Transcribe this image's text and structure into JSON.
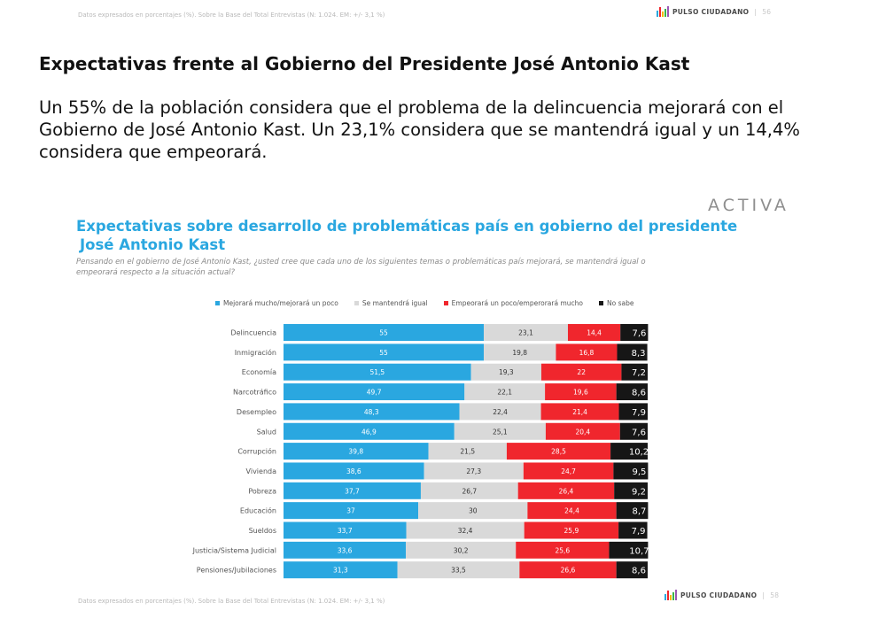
{
  "header": {
    "note": "Datos expresados en porcentajes (%). Sobre la Base del Total Entrevistas (N: 1.024. EM: +/- 3,1 %)",
    "brand": "PULSO CIUDADANO",
    "page": "56"
  },
  "title": "Expectativas frente al Gobierno del Presidente José Antonio Kast",
  "lead": "Un 55% de la población considera que el problema de la delincuencia mejorará con el Gobierno de José Antonio Kast. Un 23,1% considera que se mantendrá igual y un 14,4% considera que empeorará.",
  "activa_logo": "ACTIVA",
  "chart_header": {
    "title_plain": "Expectativas sobre ",
    "title_bold_1": "desarrollo de problemáticas país en gobierno del presidente",
    "title_bold_2": "José Antonio Kast",
    "subtitle": "Pensando en el gobierno de José Antonio Kast, ¿usted cree que cada uno de los siguientes temas o problemáticas país mejorará, se mantendrá igual o empeorará respecto a la situación actual?"
  },
  "footer": {
    "note": "Datos expresados en porcentajes (%). Sobre la Base del Total Entrevistas (N: 1.024. EM: +/- 3,1 %)",
    "brand": "PULSO CIUDADANO",
    "page": "58"
  },
  "colors": {
    "mejorara": "#2aa7e0",
    "igual": "#d9d9d9",
    "empeorara": "#f0262d",
    "no_sabe": "#161616",
    "title": "#2aa7e0"
  },
  "chart_data": {
    "type": "bar",
    "orientation": "horizontal",
    "stacked": true,
    "categories": [
      "Delincuencia",
      "Inmigración",
      "Economía",
      "Narcotráfico",
      "Desempleo",
      "Salud",
      "Corrupción",
      "Vivienda",
      "Pobreza",
      "Educación",
      "Sueldos",
      "Justicia/Sistema Judicial",
      "Pensiones/Jubilaciones"
    ],
    "series": [
      {
        "name": "Mejorará mucho/mejorará un poco",
        "labels": [
          "55",
          "55",
          "51,5",
          "49,7",
          "48,3",
          "46,9",
          "39,8",
          "38,6",
          "37,7",
          "37",
          "33,7",
          "33,6",
          "31,3"
        ],
        "values": [
          55,
          55,
          51.5,
          49.7,
          48.3,
          46.9,
          39.8,
          38.6,
          37.7,
          37,
          33.7,
          33.6,
          31.3
        ]
      },
      {
        "name": "Se mantendrá igual",
        "labels": [
          "23,1",
          "19,8",
          "19,3",
          "22,1",
          "22,4",
          "25,1",
          "21,5",
          "27,3",
          "26,7",
          "30",
          "32,4",
          "30,2",
          "33,5"
        ],
        "values": [
          23.1,
          19.8,
          19.3,
          22.1,
          22.4,
          25.1,
          21.5,
          27.3,
          26.7,
          30,
          32.4,
          30.2,
          33.5
        ]
      },
      {
        "name": "Empeorará un poco/emperorará mucho",
        "labels": [
          "14,4",
          "16,8",
          "22",
          "19,6",
          "21,4",
          "20,4",
          "28,5",
          "24,7",
          "26,4",
          "24,4",
          "25,9",
          "25,6",
          "26,6"
        ],
        "values": [
          14.4,
          16.8,
          22,
          19.6,
          21.4,
          20.4,
          28.5,
          24.7,
          26.4,
          24.4,
          25.9,
          25.6,
          26.6
        ]
      },
      {
        "name": "No sabe",
        "labels": [
          "7,6",
          "8,3",
          "7,2",
          "8,6",
          "7,9",
          "7,6",
          "10,2",
          "9,5",
          "9,2",
          "8,7",
          "7,9",
          "10,7",
          "8,6"
        ],
        "values": [
          7.6,
          8.3,
          7.2,
          8.6,
          7.9,
          7.6,
          10.2,
          9.5,
          9.2,
          8.7,
          7.9,
          10.7,
          8.6
        ]
      }
    ],
    "xlim": [
      0,
      100
    ],
    "legend_position": "top",
    "grid": false
  }
}
